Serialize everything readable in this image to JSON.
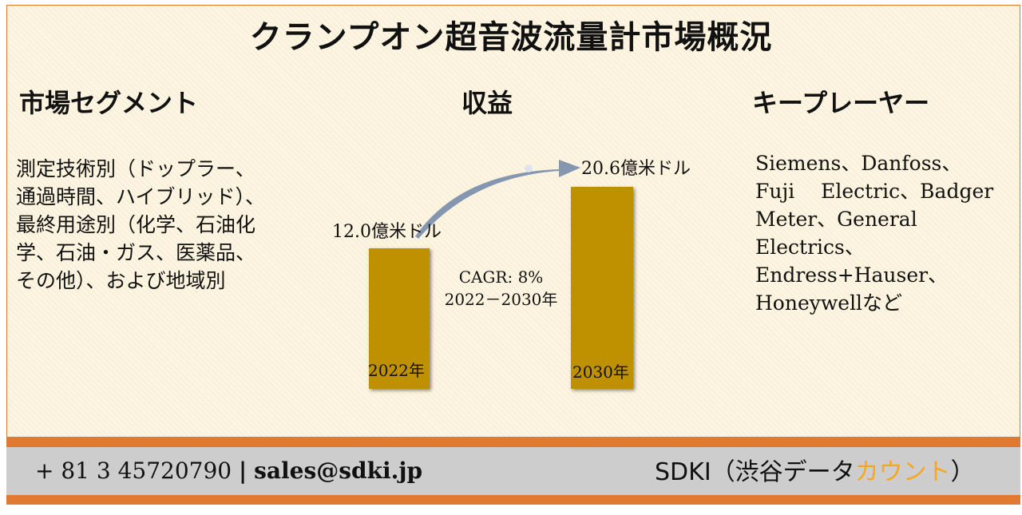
{
  "title": "クランプオン超音波流量計市場概況",
  "segments": {
    "heading": "市場セグメント",
    "lines": [
      "測定技術別（ドップラー、",
      "通過時間、ハイブリッド）、",
      "最終用途別（化学、石油化",
      "学、石油・ガス、医薬品、",
      "その他）、および地域別"
    ]
  },
  "revenue": {
    "heading": "収益",
    "bar_2022": {
      "year": "2022年",
      "value_label": "12.0億米ドル",
      "value": 12.0
    },
    "bar_2030": {
      "year": "2030年",
      "value_label": "20.6億米ドル",
      "value": 20.6
    },
    "cagr_line1": "CAGR: 8%",
    "cagr_line2": "2022－2030年"
  },
  "players": {
    "heading": "キープレーヤー",
    "lines": [
      "Siemens、Danfoss、",
      "Fuji　 Electric、Badger",
      "Meter、General",
      "Electrics、",
      "Endress+Hauser、",
      "Honeywellなど"
    ]
  },
  "footer": {
    "phone": "+ 81 3 45720790",
    "separator": "|",
    "email": "sales@sdki.jp",
    "brand_main": "SDKI（渋谷データ",
    "brand_accent": "カウント",
    "brand_end": "）"
  },
  "colors": {
    "bar": "#bf9000",
    "accent": "#e07a30",
    "arrow": "#8496b0",
    "brand_accent": "#f5a623"
  }
}
